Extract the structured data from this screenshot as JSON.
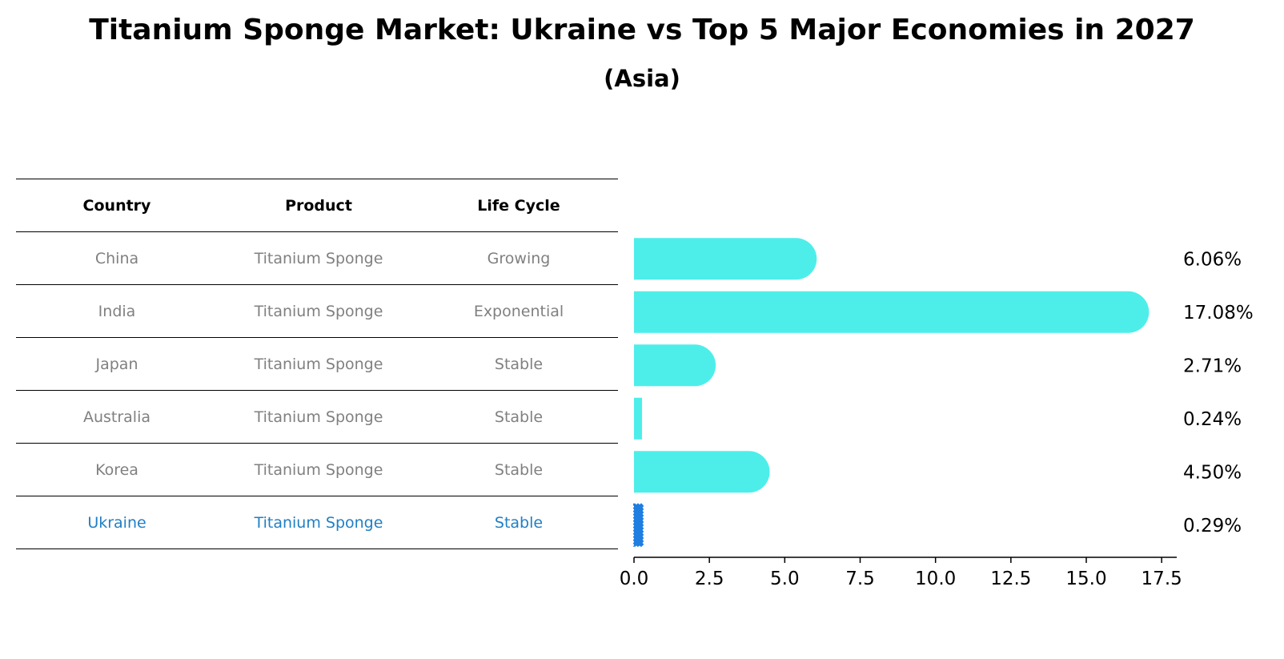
{
  "title": "Titanium Sponge Market: Ukraine vs Top 5 Major Economies in 2027",
  "subtitle": "(Asia)",
  "colors": {
    "bar": "#4deeea",
    "highlight_bar": "#1f7fe0",
    "highlight_text": "#1f7fc4",
    "muted_text": "#808080"
  },
  "table": {
    "headers": [
      "Country",
      "Product",
      "Life Cycle"
    ],
    "rows": [
      {
        "country": "China",
        "product": "Titanium Sponge",
        "life_cycle": "Growing"
      },
      {
        "country": "India",
        "product": "Titanium Sponge",
        "life_cycle": "Exponential"
      },
      {
        "country": "Japan",
        "product": "Titanium Sponge",
        "life_cycle": "Stable"
      },
      {
        "country": "Australia",
        "product": "Titanium Sponge",
        "life_cycle": "Stable"
      },
      {
        "country": "Korea",
        "product": "Titanium Sponge",
        "life_cycle": "Stable"
      },
      {
        "country": "Ukraine",
        "product": "Titanium Sponge",
        "life_cycle": "Stable"
      }
    ]
  },
  "chart_data": {
    "type": "bar",
    "orientation": "horizontal",
    "categories": [
      "China",
      "India",
      "Japan",
      "Australia",
      "Korea",
      "Ukraine"
    ],
    "values": [
      6.06,
      17.08,
      2.71,
      0.24,
      4.5,
      0.29
    ],
    "value_labels": [
      "6.06%",
      "17.08%",
      "2.71%",
      "0.24%",
      "4.50%",
      "0.29%"
    ],
    "highlight": "Ukraine",
    "xlim": [
      0,
      18
    ],
    "xticks": [
      0,
      2.5,
      5,
      7.5,
      10,
      12.5,
      15,
      17.5
    ],
    "xtick_labels": [
      "0.0",
      "2.5",
      "5.0",
      "7.5",
      "10.0",
      "12.5",
      "15.0",
      "17.5"
    ],
    "xlabel": "",
    "ylabel": ""
  }
}
